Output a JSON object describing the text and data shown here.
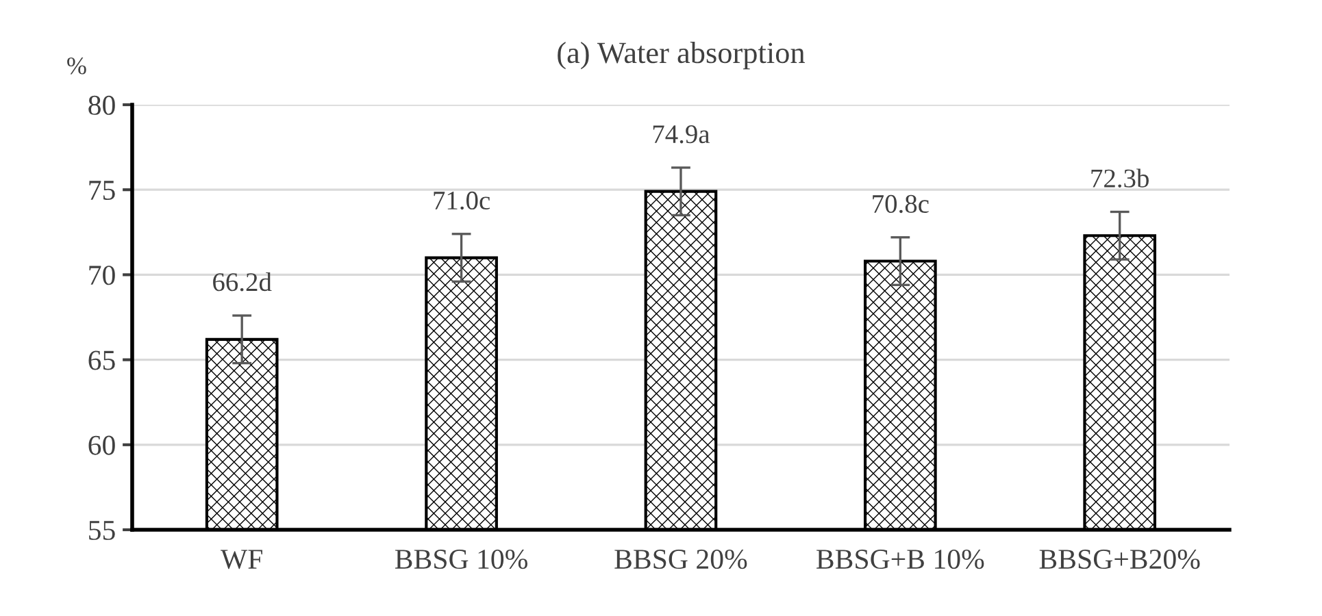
{
  "chart_data": {
    "type": "bar",
    "title": "(a) Water absorption",
    "ylabel": "%",
    "categories": [
      "WF",
      "BBSG 10%",
      "BBSG 20%",
      "BBSG+B 10%",
      "BBSG+B20%"
    ],
    "values": [
      66.2,
      71.0,
      74.9,
      70.8,
      72.3
    ],
    "errors": [
      1.4,
      1.4,
      1.4,
      1.4,
      1.4
    ],
    "value_labels": [
      "66.2d",
      "71.0c",
      "74.9a",
      "70.8c",
      "72.3b"
    ],
    "color": "#000000",
    "ylim": [
      55,
      80
    ],
    "yticks": [
      55,
      60,
      65,
      70,
      75,
      80
    ],
    "grid": "y",
    "legend": false
  }
}
